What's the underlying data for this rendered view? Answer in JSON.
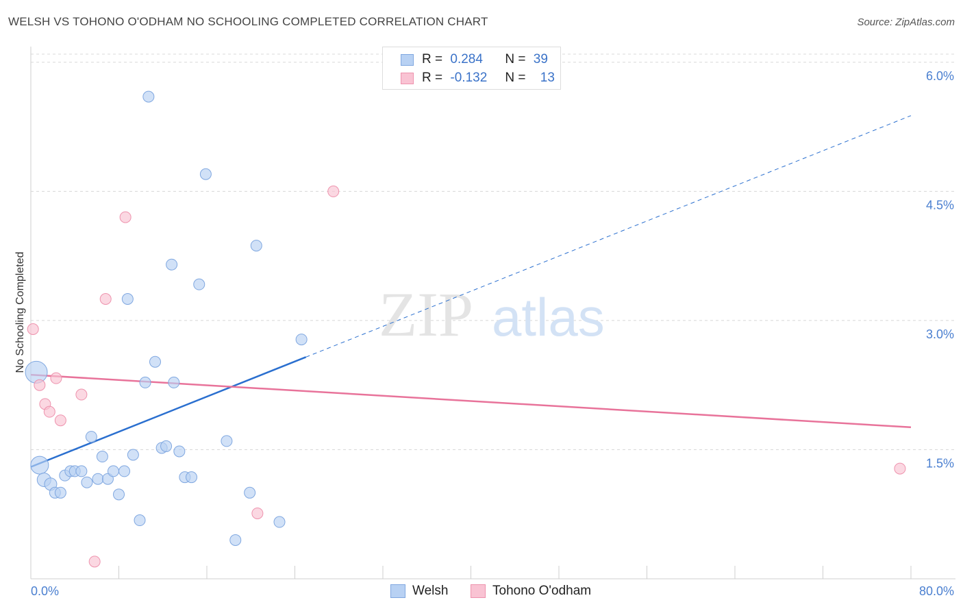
{
  "title": "WELSH VS TOHONO O'ODHAM NO SCHOOLING COMPLETED CORRELATION CHART",
  "source": "Source: ZipAtlas.com",
  "watermark": {
    "zip": "ZIP",
    "atlas": "atlas"
  },
  "legend": {
    "rows": [
      {
        "r_label": "R =",
        "r_value": "0.284",
        "n_label": "N =",
        "n_value": "39"
      },
      {
        "r_label": "R =",
        "r_value": "-0.132",
        "n_label": "N =",
        "n_value": "13"
      }
    ]
  },
  "bottom_legend": {
    "welsh": "Welsh",
    "tohono": "Tohono O'odham"
  },
  "colors": {
    "welsh_fill": "#b8d1f3",
    "welsh_stroke": "#7fa7e0",
    "welsh_line": "#2a6fcf",
    "tohono_fill": "#f9c3d3",
    "tohono_stroke": "#ee92ad",
    "tohono_line": "#e8739a",
    "tick_color": "#4a7fd0",
    "grid": "#d8d8d8"
  },
  "chart_data": {
    "type": "scatter",
    "ylabel": "No Schooling Completed",
    "x_tick_labels": [
      "0.0%",
      "80.0%"
    ],
    "y_tick_labels": [
      "1.5%",
      "3.0%",
      "4.5%",
      "6.0%"
    ],
    "y_ticks": [
      1.5,
      3.0,
      4.5,
      6.0
    ],
    "xlim": [
      0,
      80
    ],
    "ylim": [
      0,
      6.15
    ],
    "series": [
      {
        "name": "Welsh",
        "points": [
          [
            0.5,
            2.4,
            16
          ],
          [
            0.8,
            1.32,
            13
          ],
          [
            1.2,
            1.15,
            10
          ],
          [
            1.8,
            1.1,
            9
          ],
          [
            2.2,
            1.0,
            8
          ],
          [
            2.7,
            1.0,
            8
          ],
          [
            3.1,
            1.2,
            8
          ],
          [
            3.6,
            1.25,
            8
          ],
          [
            4.0,
            1.25,
            8
          ],
          [
            4.6,
            1.25,
            8
          ],
          [
            5.1,
            1.12,
            8
          ],
          [
            5.5,
            1.65,
            8
          ],
          [
            6.1,
            1.16,
            8
          ],
          [
            6.5,
            1.42,
            8
          ],
          [
            7.0,
            1.16,
            8
          ],
          [
            7.5,
            1.25,
            8
          ],
          [
            8.0,
            0.98,
            8
          ],
          [
            8.5,
            1.25,
            8
          ],
          [
            8.8,
            3.25,
            8
          ],
          [
            9.3,
            1.44,
            8
          ],
          [
            9.9,
            0.68,
            8
          ],
          [
            10.4,
            2.28,
            8
          ],
          [
            10.7,
            5.6,
            8
          ],
          [
            11.3,
            2.52,
            8
          ],
          [
            11.9,
            1.52,
            8
          ],
          [
            12.3,
            1.54,
            8
          ],
          [
            12.8,
            3.65,
            8
          ],
          [
            13.0,
            2.28,
            8
          ],
          [
            13.5,
            1.48,
            8
          ],
          [
            14.0,
            1.18,
            8
          ],
          [
            14.6,
            1.18,
            8
          ],
          [
            15.3,
            3.42,
            8
          ],
          [
            15.9,
            4.7,
            8
          ],
          [
            17.8,
            1.6,
            8
          ],
          [
            18.6,
            0.45,
            8
          ],
          [
            19.9,
            1.0,
            8
          ],
          [
            20.5,
            3.87,
            8
          ],
          [
            22.6,
            0.66,
            8
          ],
          [
            24.6,
            2.78,
            8
          ]
        ]
      },
      {
        "name": "Tohono O'odham",
        "points": [
          [
            0.2,
            2.9,
            8
          ],
          [
            0.8,
            2.25,
            8
          ],
          [
            1.3,
            2.03,
            8
          ],
          [
            1.7,
            1.94,
            8
          ],
          [
            2.3,
            2.33,
            8
          ],
          [
            2.7,
            1.84,
            8
          ],
          [
            4.6,
            2.14,
            8
          ],
          [
            5.8,
            0.2,
            8
          ],
          [
            6.8,
            3.25,
            8
          ],
          [
            8.6,
            4.2,
            8
          ],
          [
            20.6,
            0.76,
            8
          ],
          [
            27.5,
            4.5,
            8
          ],
          [
            79.0,
            1.28,
            8
          ]
        ]
      }
    ],
    "trend_lines": [
      {
        "series": "Welsh",
        "x_start": 0,
        "y_start": 1.3,
        "x_end": 80,
        "y_end": 5.38,
        "solid_until_x": 25
      },
      {
        "series": "Tohono O'odham",
        "x_start": 0,
        "y_start": 2.37,
        "x_end": 80,
        "y_end": 1.76
      }
    ],
    "grid": true,
    "legend_position": "top-center"
  }
}
